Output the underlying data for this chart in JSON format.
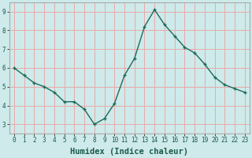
{
  "x": [
    0,
    1,
    2,
    3,
    4,
    5,
    6,
    7,
    8,
    9,
    10,
    11,
    12,
    13,
    14,
    15,
    16,
    17,
    18,
    19,
    20,
    21,
    22,
    23
  ],
  "y": [
    6.0,
    5.6,
    5.2,
    5.0,
    4.7,
    4.2,
    4.2,
    3.8,
    3.0,
    3.3,
    4.1,
    5.6,
    6.5,
    8.2,
    9.1,
    8.3,
    7.7,
    7.1,
    6.8,
    6.2,
    5.5,
    5.1,
    4.9,
    4.7
  ],
  "xlabel": "Humidex (Indice chaleur)",
  "bg_color": "#ceeaea",
  "grid_color": "#e8aaaa",
  "line_color": "#1a6b5a",
  "marker_color": "#1a6b5a",
  "ylim": [
    2.5,
    9.5
  ],
  "xlim": [
    -0.5,
    23.5
  ],
  "yticks": [
    3,
    4,
    5,
    6,
    7,
    8,
    9
  ],
  "xticks": [
    0,
    1,
    2,
    3,
    4,
    5,
    6,
    7,
    8,
    9,
    10,
    11,
    12,
    13,
    14,
    15,
    16,
    17,
    18,
    19,
    20,
    21,
    22,
    23
  ],
  "tick_fontsize": 5.5,
  "xlabel_fontsize": 7.5,
  "line_width": 1.0,
  "marker_size": 2.5
}
